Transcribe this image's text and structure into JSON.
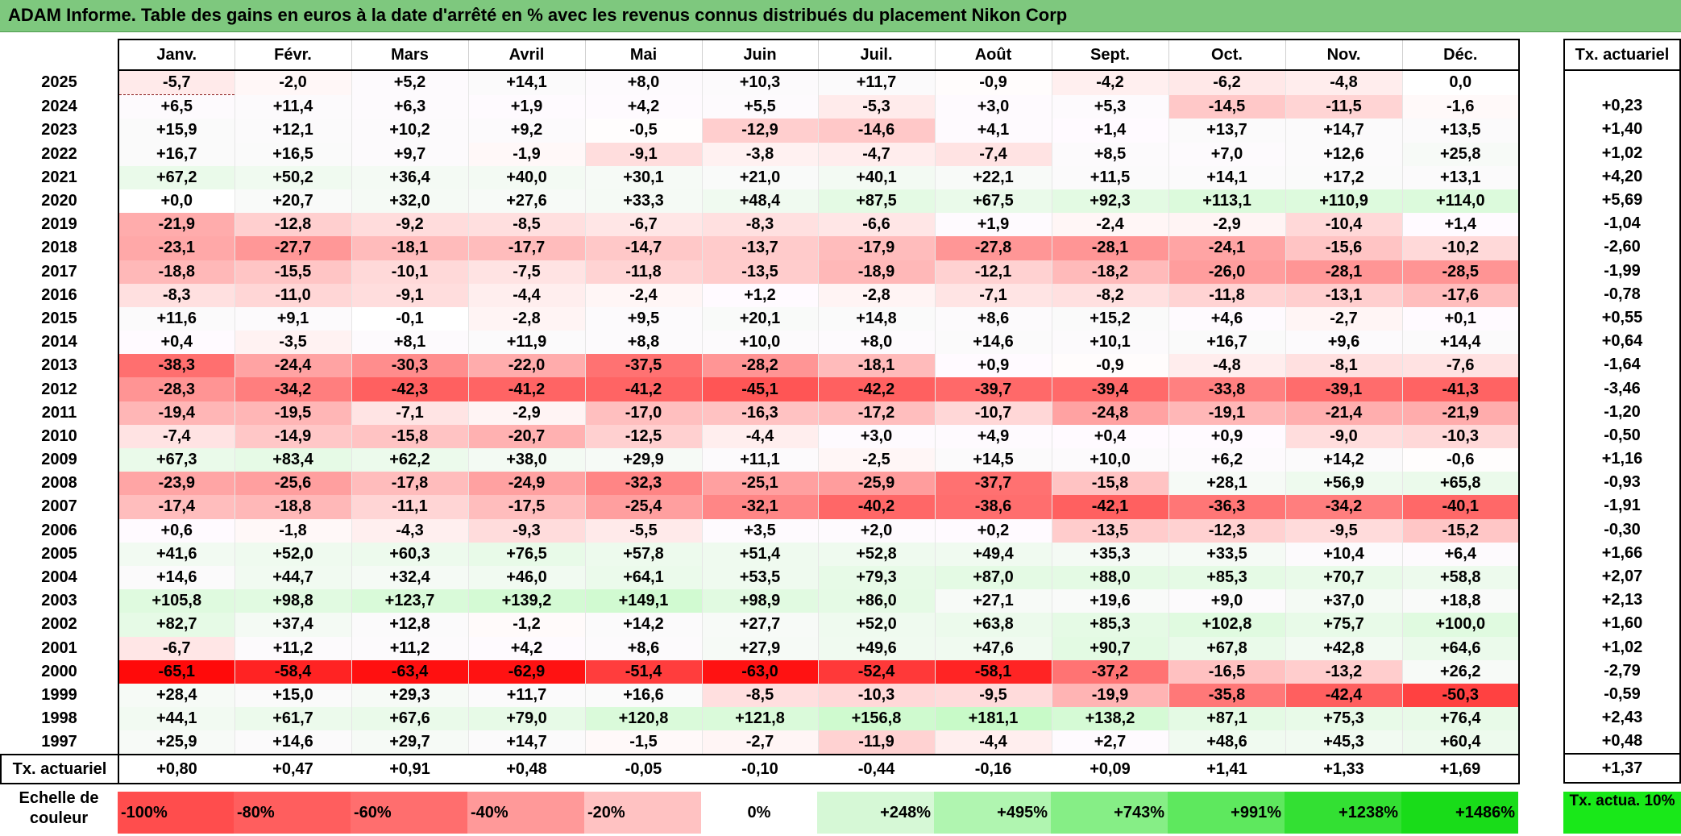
{
  "title": "ADAM Informe. Table des gains en euros à la date d'arrêté en % avec les revenus connus distribués du placement Nikon Corp",
  "columns": [
    "Janv.",
    "Févr.",
    "Mars",
    "Avril",
    "Mai",
    "Juin",
    "Juil.",
    "Août",
    "Sept.",
    "Oct.",
    "Nov.",
    "Déc."
  ],
  "side_header": "Tx. actuariel",
  "footer_label": "Tx. actuariel",
  "footer_values": [
    "+0,80",
    "+0,47",
    "+0,91",
    "+0,48",
    "-0,05",
    "-0,10",
    "-0,44",
    "-0,16",
    "+0,09",
    "+1,41",
    "+1,33",
    "+1,69"
  ],
  "footer_total": "+1,37",
  "scale_label": "Echelle de couleur",
  "scale": [
    {
      "label": "-100%",
      "color": "#ff4d4d",
      "kind": "neg"
    },
    {
      "label": "-80%",
      "color": "#ff5e5e",
      "kind": "neg"
    },
    {
      "label": "-60%",
      "color": "#ff6e6e",
      "kind": "neg"
    },
    {
      "label": "-40%",
      "color": "#ff9999",
      "kind": "neg"
    },
    {
      "label": "-20%",
      "color": "#ffc2c2",
      "kind": "neg"
    },
    {
      "label": "0%",
      "color": "#ffffff",
      "kind": "zero"
    },
    {
      "label": "+248%",
      "color": "#d6f8d6",
      "kind": "pos"
    },
    {
      "label": "+495%",
      "color": "#b0f5b0",
      "kind": "pos"
    },
    {
      "label": "+743%",
      "color": "#86ee86",
      "kind": "pos"
    },
    {
      "label": "+991%",
      "color": "#5ee85e",
      "kind": "pos"
    },
    {
      "label": "+1238%",
      "color": "#33e033",
      "kind": "pos"
    },
    {
      "label": "+1486%",
      "color": "#19dc19",
      "kind": "pos"
    }
  ],
  "scale_side_label": "Tx. actua. 10%",
  "scale_side_color": "#19e819",
  "chart_data": {
    "type": "table",
    "title": "ADAM Informe. Table des gains en euros à la date d'arrêté en % avec les revenus connus distribués du placement Nikon Corp",
    "rows": [
      {
        "year": "2025",
        "values": [
          "-5,7",
          "-2,0",
          "+5,2",
          "+14,1",
          "+8,0",
          "+10,3",
          "+11,7",
          "-0,9",
          "-4,2",
          "-6,2",
          "-4,8",
          "0,0"
        ],
        "rate": ""
      },
      {
        "year": "2024",
        "values": [
          "+6,5",
          "+11,4",
          "+6,3",
          "+1,9",
          "+4,2",
          "+5,5",
          "-5,3",
          "+3,0",
          "+5,3",
          "-14,5",
          "-11,5",
          "-1,6"
        ],
        "rate": "+0,23"
      },
      {
        "year": "2023",
        "values": [
          "+15,9",
          "+12,1",
          "+10,2",
          "+9,2",
          "-0,5",
          "-12,9",
          "-14,6",
          "+4,1",
          "+1,4",
          "+13,7",
          "+14,7",
          "+13,5"
        ],
        "rate": "+1,40"
      },
      {
        "year": "2022",
        "values": [
          "+16,7",
          "+16,5",
          "+9,7",
          "-1,9",
          "-9,1",
          "-3,8",
          "-4,7",
          "-7,4",
          "+8,5",
          "+7,0",
          "+12,6",
          "+25,8"
        ],
        "rate": "+1,02"
      },
      {
        "year": "2021",
        "values": [
          "+67,2",
          "+50,2",
          "+36,4",
          "+40,0",
          "+30,1",
          "+21,0",
          "+40,1",
          "+22,1",
          "+11,5",
          "+14,1",
          "+17,2",
          "+13,1"
        ],
        "rate": "+4,20"
      },
      {
        "year": "2020",
        "values": [
          "+0,0",
          "+20,7",
          "+32,0",
          "+27,6",
          "+33,3",
          "+48,4",
          "+87,5",
          "+67,5",
          "+92,3",
          "+113,1",
          "+110,9",
          "+114,0"
        ],
        "rate": "+5,69"
      },
      {
        "year": "2019",
        "values": [
          "-21,9",
          "-12,8",
          "-9,2",
          "-8,5",
          "-6,7",
          "-8,3",
          "-6,6",
          "+1,9",
          "-2,4",
          "-2,9",
          "-10,4",
          "+1,4"
        ],
        "rate": "-1,04"
      },
      {
        "year": "2018",
        "values": [
          "-23,1",
          "-27,7",
          "-18,1",
          "-17,7",
          "-14,7",
          "-13,7",
          "-17,9",
          "-27,8",
          "-28,1",
          "-24,1",
          "-15,6",
          "-10,2"
        ],
        "rate": "-2,60"
      },
      {
        "year": "2017",
        "values": [
          "-18,8",
          "-15,5",
          "-10,1",
          "-7,5",
          "-11,8",
          "-13,5",
          "-18,9",
          "-12,1",
          "-18,2",
          "-26,0",
          "-28,1",
          "-28,5"
        ],
        "rate": "-1,99"
      },
      {
        "year": "2016",
        "values": [
          "-8,3",
          "-11,0",
          "-9,1",
          "-4,4",
          "-2,4",
          "+1,2",
          "-2,8",
          "-7,1",
          "-8,2",
          "-11,8",
          "-13,1",
          "-17,6"
        ],
        "rate": "-0,78"
      },
      {
        "year": "2015",
        "values": [
          "+11,6",
          "+9,1",
          "-0,1",
          "-2,8",
          "+9,5",
          "+20,1",
          "+14,8",
          "+8,6",
          "+15,2",
          "+4,6",
          "-2,7",
          "+0,1"
        ],
        "rate": "+0,55"
      },
      {
        "year": "2014",
        "values": [
          "+0,4",
          "-3,5",
          "+8,1",
          "+11,9",
          "+8,8",
          "+10,0",
          "+8,0",
          "+14,6",
          "+10,1",
          "+16,7",
          "+9,6",
          "+14,4"
        ],
        "rate": "+0,64"
      },
      {
        "year": "2013",
        "values": [
          "-38,3",
          "-24,4",
          "-30,3",
          "-22,0",
          "-37,5",
          "-28,2",
          "-18,1",
          "+0,9",
          "-0,9",
          "-4,8",
          "-8,1",
          "-7,6"
        ],
        "rate": "-1,64"
      },
      {
        "year": "2012",
        "values": [
          "-28,3",
          "-34,2",
          "-42,3",
          "-41,2",
          "-41,2",
          "-45,1",
          "-42,2",
          "-39,7",
          "-39,4",
          "-33,8",
          "-39,1",
          "-41,3"
        ],
        "rate": "-3,46"
      },
      {
        "year": "2011",
        "values": [
          "-19,4",
          "-19,5",
          "-7,1",
          "-2,9",
          "-17,0",
          "-16,3",
          "-17,2",
          "-10,7",
          "-24,8",
          "-19,1",
          "-21,4",
          "-21,9"
        ],
        "rate": "-1,20"
      },
      {
        "year": "2010",
        "values": [
          "-7,4",
          "-14,9",
          "-15,8",
          "-20,7",
          "-12,5",
          "-4,4",
          "+3,0",
          "+4,9",
          "+0,4",
          "+0,9",
          "-9,0",
          "-10,3"
        ],
        "rate": "-0,50"
      },
      {
        "year": "2009",
        "values": [
          "+67,3",
          "+83,4",
          "+62,2",
          "+38,0",
          "+29,9",
          "+11,1",
          "-2,5",
          "+14,5",
          "+10,0",
          "+6,2",
          "+14,2",
          "-0,6"
        ],
        "rate": "+1,16"
      },
      {
        "year": "2008",
        "values": [
          "-23,9",
          "-25,6",
          "-17,8",
          "-24,9",
          "-32,3",
          "-25,1",
          "-25,9",
          "-37,7",
          "-15,8",
          "+28,1",
          "+56,9",
          "+65,8"
        ],
        "rate": "-0,93"
      },
      {
        "year": "2007",
        "values": [
          "-17,4",
          "-18,8",
          "-11,1",
          "-17,5",
          "-25,4",
          "-32,1",
          "-40,2",
          "-38,6",
          "-42,1",
          "-36,3",
          "-34,2",
          "-40,1"
        ],
        "rate": "-1,91"
      },
      {
        "year": "2006",
        "values": [
          "+0,6",
          "-1,8",
          "-4,3",
          "-9,3",
          "-5,5",
          "+3,5",
          "+2,0",
          "+0,2",
          "-13,5",
          "-12,3",
          "-9,5",
          "-15,2"
        ],
        "rate": "-0,30"
      },
      {
        "year": "2005",
        "values": [
          "+41,6",
          "+52,0",
          "+60,3",
          "+76,5",
          "+57,8",
          "+51,4",
          "+52,8",
          "+49,4",
          "+35,3",
          "+33,5",
          "+10,4",
          "+6,4"
        ],
        "rate": "+1,66"
      },
      {
        "year": "2004",
        "values": [
          "+14,6",
          "+44,7",
          "+32,4",
          "+46,0",
          "+64,1",
          "+53,5",
          "+79,3",
          "+87,0",
          "+88,0",
          "+85,3",
          "+70,7",
          "+58,8"
        ],
        "rate": "+2,07"
      },
      {
        "year": "2003",
        "values": [
          "+105,8",
          "+98,8",
          "+123,7",
          "+139,2",
          "+149,1",
          "+98,9",
          "+86,0",
          "+27,1",
          "+19,6",
          "+9,0",
          "+37,0",
          "+18,8"
        ],
        "rate": "+2,13"
      },
      {
        "year": "2002",
        "values": [
          "+82,7",
          "+37,4",
          "+12,8",
          "-1,2",
          "+14,2",
          "+27,7",
          "+52,0",
          "+63,8",
          "+85,3",
          "+102,8",
          "+75,7",
          "+100,0"
        ],
        "rate": "+1,60"
      },
      {
        "year": "2001",
        "values": [
          "-6,7",
          "+11,2",
          "+11,2",
          "+4,2",
          "+8,6",
          "+27,9",
          "+49,6",
          "+47,6",
          "+90,7",
          "+67,8",
          "+42,8",
          "+64,6"
        ],
        "rate": "+1,02"
      },
      {
        "year": "2000",
        "values": [
          "-65,1",
          "-58,4",
          "-63,4",
          "-62,9",
          "-51,4",
          "-63,0",
          "-52,4",
          "-58,1",
          "-37,2",
          "-16,5",
          "-13,2",
          "+26,2"
        ],
        "rate": "-2,79"
      },
      {
        "year": "1999",
        "values": [
          "+28,4",
          "+15,0",
          "+29,3",
          "+11,7",
          "+16,6",
          "-8,5",
          "-10,3",
          "-9,5",
          "-19,9",
          "-35,8",
          "-42,4",
          "-50,3"
        ],
        "rate": "-0,59"
      },
      {
        "year": "1998",
        "values": [
          "+44,1",
          "+61,7",
          "+67,6",
          "+79,0",
          "+120,8",
          "+121,8",
          "+156,8",
          "+181,1",
          "+138,2",
          "+87,1",
          "+75,3",
          "+76,4"
        ],
        "rate": "+2,43"
      },
      {
        "year": "1997",
        "values": [
          "+25,9",
          "+14,6",
          "+29,7",
          "+14,7",
          "-1,5",
          "-2,7",
          "-11,9",
          "-4,4",
          "+2,7",
          "+48,6",
          "+45,3",
          "+60,4"
        ],
        "rate": "+0,48"
      }
    ]
  }
}
